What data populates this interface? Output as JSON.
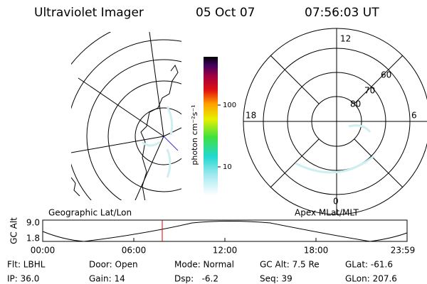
{
  "header": {
    "title": "Ultraviolet Imager",
    "date": "05 Oct 07",
    "time": "07:56:03 UT"
  },
  "colorbar": {
    "label": "photon cm⁻²s⁻¹",
    "ticks": [
      "100",
      "10"
    ]
  },
  "polar": {
    "mlt_labels": {
      "top": "12",
      "left": "18",
      "right": "6",
      "bottom": "0"
    },
    "lat_labels": [
      "80",
      "70",
      "60"
    ]
  },
  "timeline": {
    "left_title": "Geographic Lat/Lon",
    "right_title": "Apex MLat/MLT",
    "y_label": "GC Alt",
    "y_ticks": [
      "9.0",
      "1.8"
    ],
    "x_ticks": [
      "00:00",
      "06:00",
      "12:00",
      "18:00",
      "23:59"
    ]
  },
  "info": [
    [
      "Flt: LBHL",
      "Door: Open",
      "Mode: Normal",
      "GC Alt: 7.5 Re",
      "GLat: -61.6"
    ],
    [
      "IP: 36.0",
      "Gain: 14",
      "Dsp:   -6.2",
      "Seq: 39",
      "GLon: 207.6"
    ]
  ]
}
